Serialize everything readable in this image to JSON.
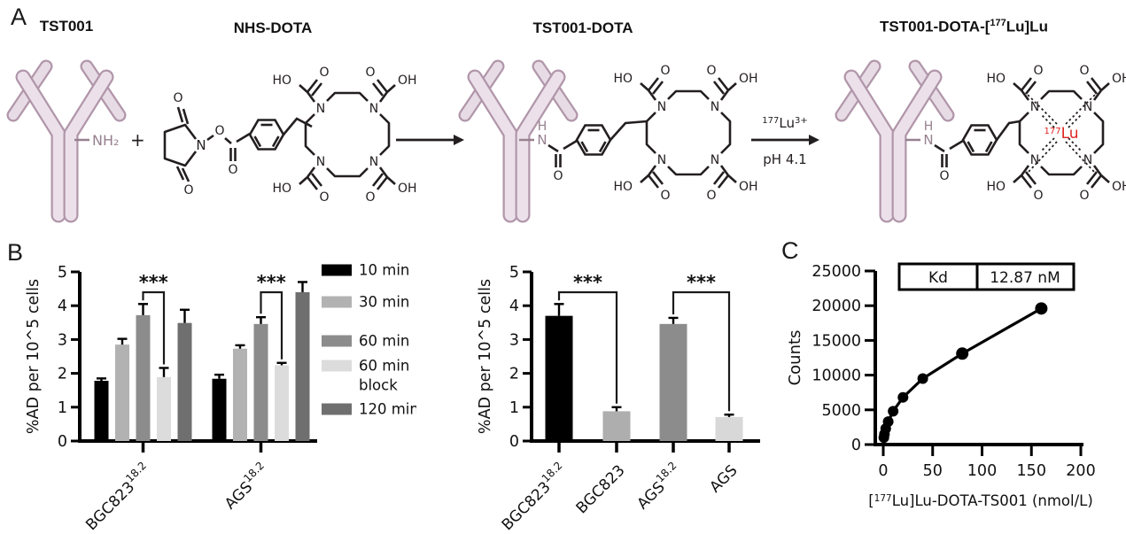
{
  "panels": {
    "a": "A",
    "b": "B",
    "c": "C"
  },
  "panel_a": {
    "titles": {
      "antibody": "TST001",
      "chelator": "NHS-DOTA",
      "conjugate": "TST001-DOTA",
      "radioconjugate_pre": "TST001-DOTA-[",
      "radioconjugate_mass": "177",
      "radioconjugate_post": "Lu]Lu"
    },
    "plus": "+",
    "reaction2": {
      "mass": "177",
      "element": "Lu",
      "charge": "3+",
      "condition": "pH 4.1"
    },
    "atoms": {
      "n": "N",
      "o": "O",
      "ho": "HO",
      "oh": "OH",
      "h": "H",
      "nh2": "NH₂",
      "lu": "Lu",
      "lu_mass": "177"
    },
    "colors": {
      "antibody_fill": "#ece1eb",
      "antibody_stroke": "#b196aa",
      "light_chain_fill": "#e7dce6",
      "amide": "#97808f",
      "lutetium": "#e02420",
      "bond": "#231e20"
    }
  },
  "chart_data": [
    {
      "id": "b1",
      "type": "bar",
      "grouped": true,
      "ylabel": "%AD per 10^5 cells",
      "ylim": [
        0,
        5
      ],
      "yticks": [
        0,
        1,
        2,
        3,
        4,
        5
      ],
      "categories": [
        {
          "base": "BGC823",
          "sup": "18.2"
        },
        {
          "base": "AGS",
          "sup": "18.2"
        }
      ],
      "series": [
        {
          "name": "10 min",
          "name_lines": [
            "10 min"
          ],
          "color": "#000000",
          "values": [
            1.78,
            1.84
          ],
          "errors": [
            0.07,
            0.12
          ]
        },
        {
          "name": "30 min",
          "name_lines": [
            "30 min"
          ],
          "color": "#b2b2b2",
          "values": [
            2.85,
            2.73
          ],
          "errors": [
            0.17,
            0.1
          ]
        },
        {
          "name": "60 min",
          "name_lines": [
            "60 min"
          ],
          "color": "#8c8c8c",
          "values": [
            3.72,
            3.46
          ],
          "errors": [
            0.33,
            0.2
          ]
        },
        {
          "name": "60 min block",
          "name_lines": [
            "60 min",
            "block"
          ],
          "color": "#dcdcdc",
          "values": [
            1.89,
            2.24
          ],
          "errors": [
            0.27,
            0.07
          ]
        },
        {
          "name": "120 min",
          "name_lines": [
            "120 min"
          ],
          "color": "#6f6f6f",
          "values": [
            3.49,
            4.4
          ],
          "errors": [
            0.39,
            0.3
          ]
        }
      ],
      "legend_position": "right",
      "grid": false,
      "significance": [
        {
          "group": 0,
          "series_pair": [
            2,
            3
          ],
          "label": "***"
        },
        {
          "group": 1,
          "series_pair": [
            2,
            3
          ],
          "label": "***"
        }
      ]
    },
    {
      "id": "b2",
      "type": "bar",
      "grouped": false,
      "ylabel": "%AD per 10^5 cells",
      "ylim": [
        0,
        5
      ],
      "yticks": [
        0,
        1,
        2,
        3,
        4,
        5
      ],
      "categories": [
        {
          "base": "BGC823",
          "sup": "18.2"
        },
        {
          "base": "BGC823",
          "sup": ""
        },
        {
          "base": "AGS",
          "sup": "18.2"
        },
        {
          "base": "AGS",
          "sup": ""
        }
      ],
      "values": [
        3.7,
        0.88,
        3.46,
        0.71
      ],
      "errors": [
        0.35,
        0.12,
        0.18,
        0.07
      ],
      "colors": [
        "#000000",
        "#aeaeae",
        "#8c8c8c",
        "#d8d8d8"
      ],
      "grid": false,
      "significance": [
        {
          "pair": [
            0,
            1
          ],
          "label": "***"
        },
        {
          "pair": [
            2,
            3
          ],
          "label": "***"
        }
      ]
    },
    {
      "id": "c",
      "type": "scatter",
      "xlabel_pre": "[",
      "xlabel_mass": "177",
      "xlabel_post": "Lu]Lu-DOTA-TS001 (nmol/L)",
      "ylabel": "Counts",
      "xlim": [
        0,
        200
      ],
      "ylim": [
        0,
        25000
      ],
      "xticks": [
        0,
        50,
        100,
        150,
        200
      ],
      "yticks": [
        0,
        5000,
        10000,
        15000,
        20000,
        25000
      ],
      "x": [
        0.6,
        1.2,
        2.5,
        5,
        10,
        20,
        40,
        80,
        160
      ],
      "y": [
        1000,
        1500,
        2300,
        3300,
        4800,
        6800,
        9500,
        13100,
        19600
      ],
      "marker_color": "#000000",
      "line_color": "#000000",
      "grid": false,
      "kd_table": {
        "param": "Kd",
        "value": "12.87 nM"
      }
    }
  ]
}
